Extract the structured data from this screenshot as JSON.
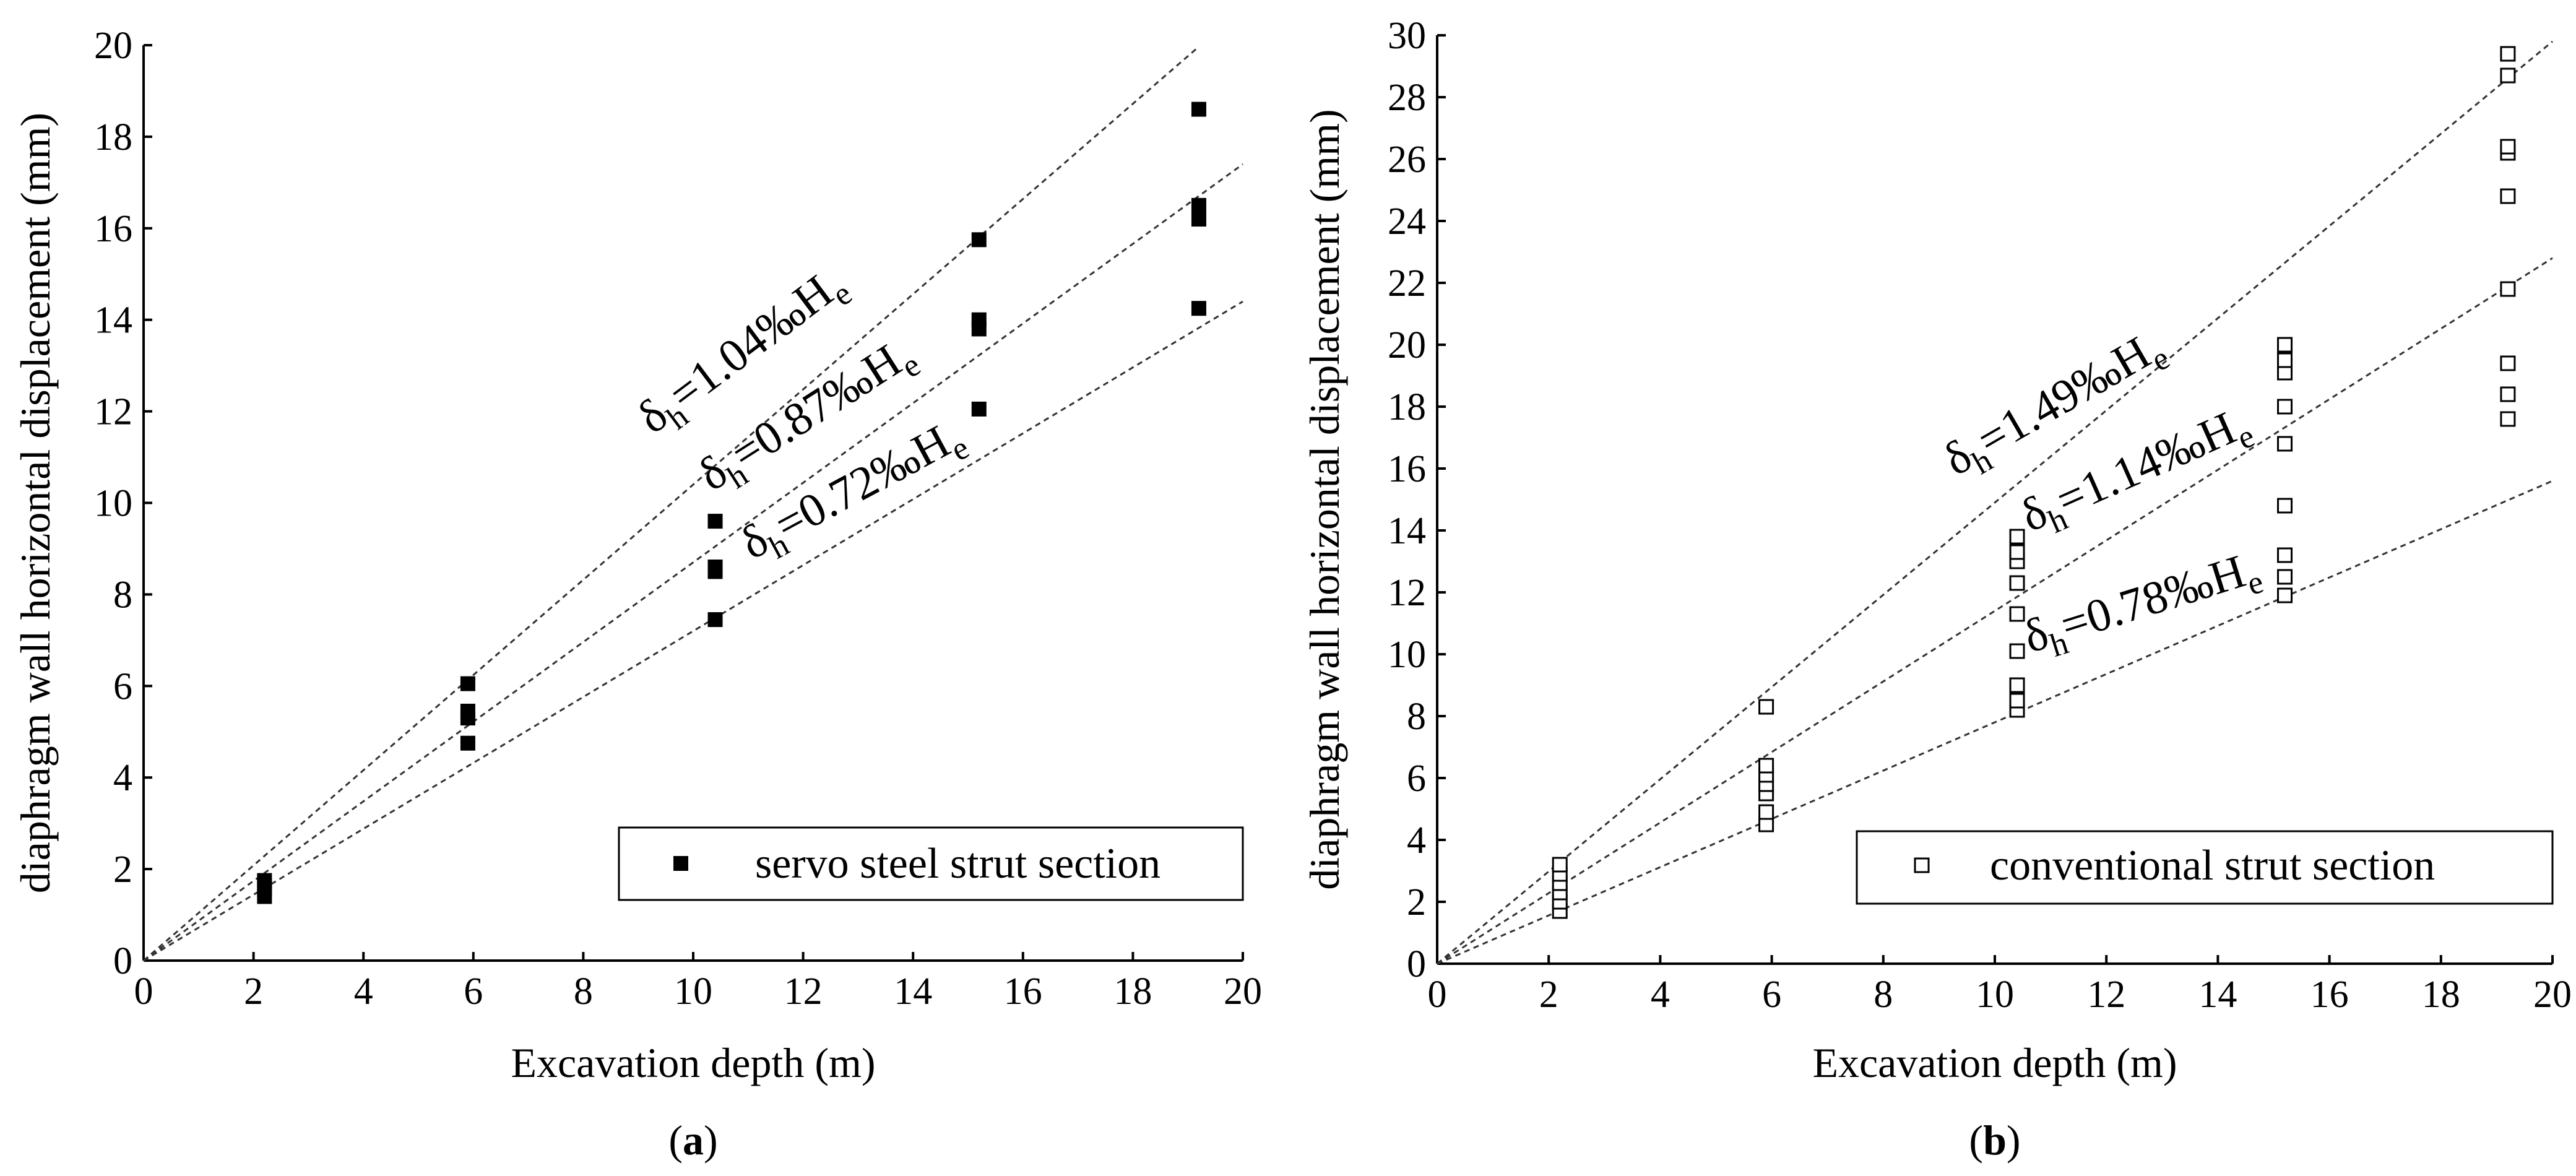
{
  "chart_data": [
    {
      "type": "scatter",
      "panel_label": "(a)",
      "xlabel": "Excavation depth (m)",
      "ylabel": "diaphragm wall horizontal displacement (mm)",
      "xlim": [
        0,
        20
      ],
      "ylim": [
        0,
        20
      ],
      "xticks": [
        0,
        2,
        4,
        6,
        8,
        10,
        12,
        14,
        16,
        18,
        20
      ],
      "yticks": [
        0,
        2,
        4,
        6,
        8,
        10,
        12,
        14,
        16,
        18,
        20
      ],
      "legend": "top-right of lower area",
      "series": [
        {
          "name": "servo steel strut section",
          "marker": "filled-square",
          "points": [
            [
              2.2,
              1.4
            ],
            [
              2.2,
              1.55
            ],
            [
              2.2,
              1.65
            ],
            [
              2.2,
              1.75
            ],
            [
              5.9,
              4.75
            ],
            [
              5.9,
              5.3
            ],
            [
              5.9,
              5.45
            ],
            [
              5.9,
              6.05
            ],
            [
              10.4,
              7.45
            ],
            [
              10.4,
              8.5
            ],
            [
              10.4,
              8.6
            ],
            [
              10.4,
              9.6
            ],
            [
              15.2,
              12.05
            ],
            [
              15.2,
              13.8
            ],
            [
              15.2,
              14.0
            ],
            [
              15.2,
              15.75
            ],
            [
              19.2,
              14.25
            ],
            [
              19.2,
              16.2
            ],
            [
              19.2,
              16.5
            ],
            [
              19.2,
              18.6
            ]
          ]
        }
      ],
      "reference_lines": [
        {
          "ratio": 1.04,
          "x_end": 19.2,
          "label_sub": "h",
          "label_text": "=1.04‰H",
          "label_sub2": "e"
        },
        {
          "ratio": 0.87,
          "x_end": 20.0,
          "label_sub": "h",
          "label_text": "=0.87‰H",
          "label_sub2": "e"
        },
        {
          "ratio": 0.72,
          "x_end": 20.0,
          "label_sub": "h",
          "label_text": "=0.72‰H",
          "label_sub2": "e"
        }
      ]
    },
    {
      "type": "scatter",
      "panel_label": "(b)",
      "xlabel": "Excavation depth (m)",
      "ylabel": "diaphragm wall horizontal displacement (mm)",
      "xlim": [
        0,
        20
      ],
      "ylim": [
        0,
        30
      ],
      "xticks": [
        0,
        2,
        4,
        6,
        8,
        10,
        12,
        14,
        16,
        18,
        20
      ],
      "yticks": [
        0,
        2,
        4,
        6,
        8,
        10,
        12,
        14,
        16,
        18,
        20,
        22,
        24,
        26,
        28,
        30
      ],
      "legend": "bottom-right",
      "series": [
        {
          "name": "conventional strut section",
          "marker": "open-square",
          "points": [
            [
              2.2,
              1.7
            ],
            [
              2.2,
              2.0
            ],
            [
              2.2,
              2.3
            ],
            [
              2.2,
              2.6
            ],
            [
              2.2,
              2.9
            ],
            [
              2.2,
              3.2
            ],
            [
              5.9,
              4.5
            ],
            [
              5.9,
              4.9
            ],
            [
              5.9,
              5.5
            ],
            [
              5.9,
              5.8
            ],
            [
              5.9,
              6.1
            ],
            [
              5.9,
              6.4
            ],
            [
              5.9,
              8.3
            ],
            [
              10.4,
              8.2
            ],
            [
              10.4,
              8.5
            ],
            [
              10.4,
              9.0
            ],
            [
              10.4,
              10.1
            ],
            [
              10.4,
              11.3
            ],
            [
              10.4,
              12.3
            ],
            [
              10.4,
              13.0
            ],
            [
              10.4,
              13.3
            ],
            [
              10.4,
              13.8
            ],
            [
              15.2,
              11.9
            ],
            [
              15.2,
              12.5
            ],
            [
              15.2,
              13.2
            ],
            [
              15.2,
              14.8
            ],
            [
              15.2,
              16.8
            ],
            [
              15.2,
              18.0
            ],
            [
              15.2,
              19.1
            ],
            [
              15.2,
              19.5
            ],
            [
              15.2,
              20.0
            ],
            [
              19.2,
              17.6
            ],
            [
              19.2,
              18.4
            ],
            [
              19.2,
              19.4
            ],
            [
              19.2,
              21.8
            ],
            [
              19.2,
              24.8
            ],
            [
              19.2,
              26.2
            ],
            [
              19.2,
              26.4
            ],
            [
              19.2,
              28.7
            ],
            [
              19.2,
              29.4
            ]
          ]
        }
      ],
      "reference_lines": [
        {
          "ratio": 1.49,
          "x_end": 20.0,
          "label_sub": "h",
          "label_text": "=1.49‰H",
          "label_sub2": "e"
        },
        {
          "ratio": 1.14,
          "x_end": 20.0,
          "label_sub": "h",
          "label_text": "=1.14‰H",
          "label_sub2": "e"
        },
        {
          "ratio": 0.78,
          "x_end": 20.0,
          "label_sub": "h",
          "label_text": "=0.78‰H",
          "label_sub2": "e"
        }
      ]
    }
  ]
}
